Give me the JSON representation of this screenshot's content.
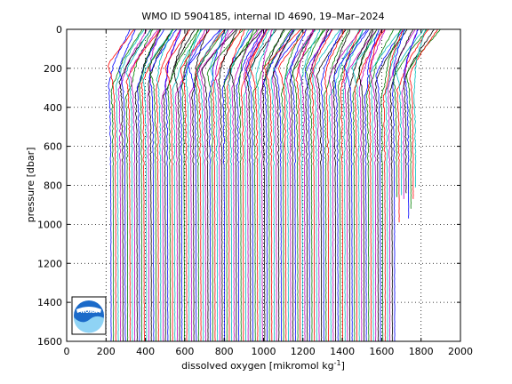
{
  "chart_data": {
    "type": "line",
    "title": "WMO ID 5904185, internal ID 4690, 19–Mar–2024",
    "xlabel_main": "dissolved oxygen [mikromol kg",
    "xlabel_sup": "-1",
    "xlabel_close": "]",
    "ylabel": "pressure [dbar]",
    "xlim": [
      0,
      2000
    ],
    "ylim": [
      0,
      1600
    ],
    "y_reversed": true,
    "grid": true,
    "grid_style": "dotted",
    "x_ticks": [
      "0",
      "200",
      "400",
      "600",
      "800",
      "1000",
      "1200",
      "1400",
      "1600",
      "1800",
      "2000"
    ],
    "y_ticks": [
      "0",
      "200",
      "400",
      "600",
      "800",
      "1000",
      "1200",
      "1400",
      "1600"
    ],
    "series_offset_note": "",
    "series_colors": [
      "#0000ff",
      "#008000",
      "#ff0000",
      "#00bfbf",
      "#bf00bf",
      "#000000"
    ],
    "series_count": 130,
    "series_start_x": 180,
    "series_spacing_x": 12,
    "profile_shape": {
      "pressure": [
        0,
        100,
        150,
        200,
        250,
        300,
        400,
        500,
        600,
        800,
        1000,
        1600
      ],
      "oxygen_offset": [
        0,
        0,
        2,
        10,
        25,
        35,
        40,
        42,
        43,
        44,
        45,
        46
      ]
    },
    "surface_extra": 145
  },
  "logo": {
    "text": "NOAA"
  }
}
